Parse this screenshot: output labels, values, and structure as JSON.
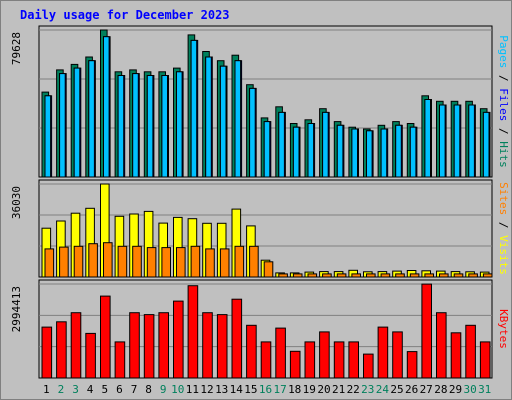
{
  "title": "Daily usage for December 2023",
  "colors": {
    "background": "#c0c0c0",
    "plot": "#c0c0c0",
    "title": "#0000ff",
    "hits": "#00805c",
    "files": "#0000ff",
    "pages": "#00c0ff",
    "visits": "#ffff00",
    "sites": "#ff8000",
    "kbytes": "#ff0000",
    "weekday": "#000000",
    "weekend": "#00805c",
    "gridline": "#808080"
  },
  "chart_data": [
    {
      "type": "bar",
      "panel": "top",
      "max_label": "79628",
      "ylim": [
        0,
        79628
      ],
      "side_labels": [
        {
          "text": "Pages",
          "color_key": "pages"
        },
        {
          "text": "Files",
          "color_key": "files"
        },
        {
          "text": "Hits",
          "color_key": "hits"
        }
      ],
      "separator": "/",
      "categories": [
        "1",
        "2",
        "3",
        "4",
        "5",
        "6",
        "7",
        "8",
        "9",
        "10",
        "11",
        "12",
        "13",
        "14",
        "15",
        "16",
        "17",
        "18",
        "19",
        "20",
        "21",
        "22",
        "23",
        "24",
        "25",
        "26",
        "27",
        "28",
        "29",
        "30",
        "31"
      ],
      "series": [
        {
          "name": "Hits",
          "values": [
            46000,
            58000,
            61000,
            65000,
            79628,
            57000,
            58000,
            57000,
            57000,
            59000,
            77000,
            68000,
            63000,
            66000,
            50000,
            32000,
            38000,
            29000,
            31000,
            37000,
            30000,
            27000,
            26000,
            28000,
            30000,
            29000,
            44000,
            41000,
            41000,
            41000,
            37000
          ]
        },
        {
          "name": "Files",
          "values": [
            44000,
            56000,
            59000,
            63000,
            76000,
            55000,
            56000,
            55000,
            55000,
            57000,
            74000,
            65000,
            60000,
            63000,
            48000,
            30000,
            35000,
            27000,
            29000,
            35000,
            28000,
            26000,
            25000,
            26000,
            28000,
            27000,
            42000,
            39000,
            39000,
            39000,
            35000
          ]
        },
        {
          "name": "Pages",
          "values": [
            44000,
            56000,
            59000,
            63000,
            76000,
            55000,
            56000,
            55000,
            55000,
            57000,
            74000,
            65000,
            60000,
            63000,
            48000,
            30000,
            35000,
            27000,
            29000,
            35000,
            28000,
            26000,
            25000,
            26000,
            28000,
            27000,
            42000,
            39000,
            39000,
            39000,
            35000
          ]
        }
      ]
    },
    {
      "type": "bar",
      "panel": "middle",
      "max_label": "36030",
      "ylim": [
        0,
        36030
      ],
      "side_labels": [
        {
          "text": "Sites",
          "color_key": "sites"
        },
        {
          "text": "Visits",
          "color_key": "visits"
        }
      ],
      "separator": "/",
      "categories": [
        "1",
        "2",
        "3",
        "4",
        "5",
        "6",
        "7",
        "8",
        "9",
        "10",
        "11",
        "12",
        "13",
        "14",
        "15",
        "16",
        "17",
        "18",
        "19",
        "20",
        "21",
        "22",
        "23",
        "24",
        "25",
        "26",
        "27",
        "28",
        "29",
        "30",
        "31"
      ],
      "series": [
        {
          "name": "Visits",
          "values": [
            18900,
            21700,
            24700,
            26600,
            36030,
            23500,
            24400,
            25400,
            20900,
            23100,
            22600,
            20800,
            20800,
            26300,
            19800,
            6500,
            1600,
            1600,
            1900,
            2100,
            2100,
            2600,
            2000,
            2100,
            2300,
            2500,
            2400,
            2300,
            2100,
            2000,
            1900
          ]
        },
        {
          "name": "Sites",
          "values": [
            10900,
            11600,
            11900,
            12900,
            13300,
            11900,
            11900,
            11400,
            11400,
            11400,
            11900,
            10900,
            10900,
            11900,
            11900,
            5900,
            1200,
            1200,
            1200,
            1200,
            1200,
            1200,
            1200,
            1200,
            1200,
            1200,
            1200,
            1200,
            1200,
            1200,
            1200
          ]
        }
      ]
    },
    {
      "type": "bar",
      "panel": "bottom",
      "max_label": "2994413",
      "ylim": [
        0,
        2994413
      ],
      "side_labels": [
        {
          "text": "KBytes",
          "color_key": "kbytes"
        }
      ],
      "separator": "",
      "categories": [
        "1",
        "2",
        "3",
        "4",
        "5",
        "6",
        "7",
        "8",
        "9",
        "10",
        "11",
        "12",
        "13",
        "14",
        "15",
        "16",
        "17",
        "18",
        "19",
        "20",
        "21",
        "22",
        "23",
        "24",
        "25",
        "26",
        "27",
        "28",
        "29",
        "30",
        "31"
      ],
      "series": [
        {
          "name": "KBytes",
          "values": [
            1620000,
            1790000,
            2080000,
            1420000,
            2610000,
            1150000,
            2080000,
            2020000,
            2080000,
            2450000,
            2940000,
            2080000,
            2020000,
            2510000,
            1680000,
            1150000,
            1590000,
            850000,
            1150000,
            1470000,
            1150000,
            1150000,
            760000,
            1620000,
            1470000,
            840000,
            2990000,
            2080000,
            1440000,
            1680000,
            1150000
          ]
        }
      ]
    }
  ]
}
